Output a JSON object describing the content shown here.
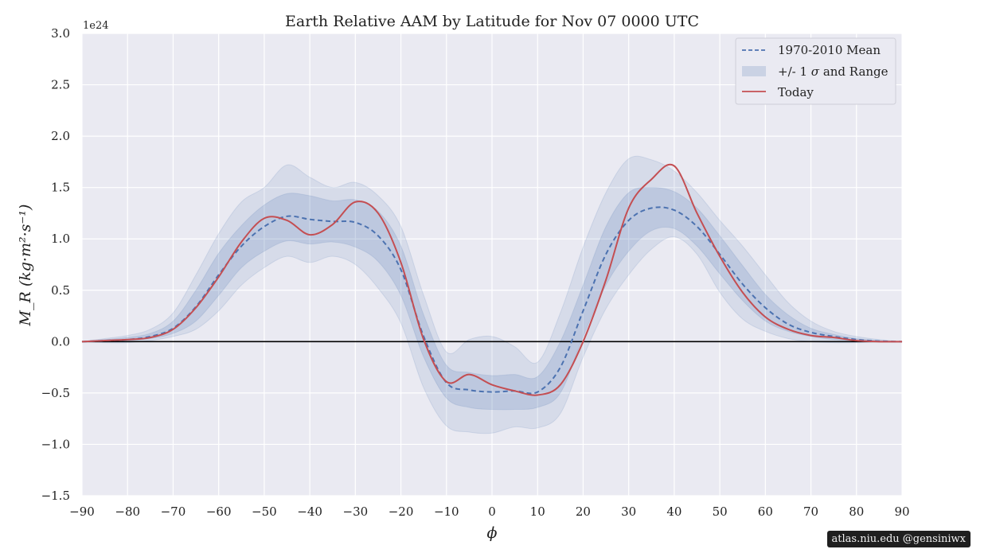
{
  "credit": "atlas.niu.edu  @gensiniwx",
  "colors": {
    "background": "#eaeaf2",
    "grid": "#ffffff",
    "mean": "#4c72b0",
    "today": "#c44e52",
    "band": "#4c72b0",
    "zero_line": "#000000"
  },
  "chart_data": {
    "type": "line",
    "title": "Earth Relative AAM by Latitude for Nov 07 0000 UTC",
    "xlabel": "ϕ",
    "ylabel": "M_R (kg·m²·s⁻¹)",
    "y_offset_label": "1e24",
    "xlim": [
      -90,
      90
    ],
    "ylim": [
      -1.5,
      3.0
    ],
    "x_ticks": [
      -90,
      -80,
      -70,
      -60,
      -50,
      -40,
      -30,
      -20,
      -10,
      0,
      10,
      20,
      30,
      40,
      50,
      60,
      70,
      80,
      90
    ],
    "x_tick_labels": [
      "−90",
      "−80",
      "−70",
      "−60",
      "−50",
      "−40",
      "−30",
      "−20",
      "−10",
      "0",
      "10",
      "20",
      "30",
      "40",
      "50",
      "60",
      "70",
      "80",
      "90"
    ],
    "y_ticks": [
      -1.5,
      -1.0,
      -0.5,
      0.0,
      0.5,
      1.0,
      1.5,
      2.0,
      2.5,
      3.0
    ],
    "y_tick_labels": [
      "−1.5",
      "−1.0",
      "−0.5",
      "0.0",
      "0.5",
      "1.0",
      "1.5",
      "2.0",
      "2.5",
      "3.0"
    ],
    "grid": true,
    "legend_position": "top-right",
    "legend": {
      "mean": "1970-2010 Mean",
      "band_prefix": "+/- 1",
      "band_symbol": "σ",
      "band_suffix": "and Range",
      "today": "Today"
    },
    "x": [
      -90,
      -85,
      -80,
      -75,
      -70,
      -65,
      -60,
      -55,
      -50,
      -45,
      -40,
      -35,
      -30,
      -25,
      -20,
      -15,
      -10,
      -5,
      0,
      5,
      10,
      15,
      20,
      25,
      30,
      35,
      40,
      45,
      50,
      55,
      60,
      65,
      70,
      75,
      80,
      85,
      90
    ],
    "series": [
      {
        "name": "1970-2010 Mean",
        "values": [
          0.0,
          0.01,
          0.02,
          0.05,
          0.13,
          0.34,
          0.65,
          0.93,
          1.12,
          1.22,
          1.19,
          1.17,
          1.16,
          1.03,
          0.7,
          0.05,
          -0.4,
          -0.47,
          -0.49,
          -0.48,
          -0.49,
          -0.25,
          0.3,
          0.85,
          1.18,
          1.3,
          1.28,
          1.12,
          0.85,
          0.56,
          0.33,
          0.17,
          0.09,
          0.05,
          0.02,
          0.005,
          0.0
        ]
      },
      {
        "name": "Today",
        "values": [
          0.0,
          0.01,
          0.02,
          0.04,
          0.12,
          0.33,
          0.63,
          0.97,
          1.2,
          1.18,
          1.04,
          1.14,
          1.36,
          1.25,
          0.77,
          0.02,
          -0.39,
          -0.32,
          -0.42,
          -0.48,
          -0.52,
          -0.42,
          0.0,
          0.6,
          1.3,
          1.58,
          1.71,
          1.25,
          0.83,
          0.48,
          0.24,
          0.12,
          0.06,
          0.04,
          0.01,
          0.0,
          0.0
        ]
      }
    ],
    "sigma_band": {
      "lower": [
        0.0,
        0.0,
        0.01,
        0.03,
        0.08,
        0.2,
        0.45,
        0.72,
        0.88,
        0.98,
        0.95,
        0.97,
        0.92,
        0.78,
        0.45,
        -0.15,
        -0.55,
        -0.64,
        -0.66,
        -0.66,
        -0.64,
        -0.5,
        0.05,
        0.55,
        0.88,
        1.08,
        1.1,
        0.93,
        0.66,
        0.4,
        0.2,
        0.1,
        0.05,
        0.02,
        0.01,
        0.0,
        0.0
      ],
      "upper": [
        0.0,
        0.02,
        0.04,
        0.08,
        0.2,
        0.5,
        0.86,
        1.13,
        1.33,
        1.44,
        1.42,
        1.37,
        1.38,
        1.27,
        0.93,
        0.26,
        -0.23,
        -0.3,
        -0.33,
        -0.32,
        -0.34,
        0.0,
        0.55,
        1.12,
        1.45,
        1.5,
        1.46,
        1.3,
        1.03,
        0.74,
        0.46,
        0.26,
        0.13,
        0.07,
        0.03,
        0.01,
        0.0
      ]
    },
    "range_band": {
      "lower": [
        0.0,
        -0.01,
        -0.01,
        0.01,
        0.05,
        0.12,
        0.3,
        0.55,
        0.72,
        0.83,
        0.77,
        0.83,
        0.75,
        0.52,
        0.18,
        -0.45,
        -0.82,
        -0.88,
        -0.89,
        -0.83,
        -0.84,
        -0.7,
        -0.15,
        0.32,
        0.65,
        0.9,
        1.02,
        0.85,
        0.48,
        0.22,
        0.1,
        0.03,
        0.0,
        -0.01,
        -0.01,
        0.0,
        0.0
      ],
      "upper": [
        0.0,
        0.03,
        0.06,
        0.12,
        0.28,
        0.65,
        1.05,
        1.36,
        1.5,
        1.72,
        1.6,
        1.5,
        1.55,
        1.42,
        1.12,
        0.45,
        -0.1,
        0.02,
        0.05,
        -0.05,
        -0.2,
        0.28,
        0.92,
        1.45,
        1.78,
        1.77,
        1.66,
        1.45,
        1.18,
        0.93,
        0.65,
        0.38,
        0.2,
        0.1,
        0.05,
        0.02,
        0.0
      ]
    }
  }
}
